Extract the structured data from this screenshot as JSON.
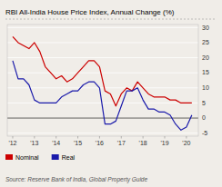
{
  "chart_data": {
    "type": "line",
    "title": "RBI All-India House Price Index, Annual Change (%)",
    "annotations": [
      "Source: Reserve Bank of India, Global Property Guide"
    ],
    "x": [
      2012.0,
      2012.25,
      2012.5,
      2012.75,
      2013.0,
      2013.25,
      2013.5,
      2013.75,
      2014.0,
      2014.25,
      2014.5,
      2014.75,
      2015.0,
      2015.25,
      2015.5,
      2015.75,
      2016.0,
      2016.25,
      2016.5,
      2016.75,
      2017.0,
      2017.25,
      2017.5,
      2017.75,
      2018.0,
      2018.25,
      2018.5,
      2018.75,
      2019.0,
      2019.25,
      2019.5,
      2019.75,
      2020.0,
      2020.25
    ],
    "series": [
      {
        "name": "Nominal",
        "color": "#cc0000",
        "values": [
          27,
          25,
          24,
          23,
          25,
          22,
          17,
          15,
          13,
          14,
          12,
          13,
          15,
          17,
          19,
          19,
          17,
          9,
          8,
          4,
          8,
          10,
          9,
          12,
          10,
          8,
          7,
          7,
          7,
          6,
          6,
          5,
          5,
          5
        ]
      },
      {
        "name": "Real",
        "color": "#1a1aaa",
        "values": [
          19,
          13,
          13,
          11,
          6,
          5,
          5,
          5,
          5,
          7,
          8,
          9,
          9,
          11,
          12,
          12,
          10,
          -2,
          -2,
          -1,
          4,
          9,
          9,
          10,
          6,
          3,
          3,
          2,
          2,
          1,
          -2,
          -4,
          -3,
          1
        ]
      }
    ],
    "xlim": [
      2011.75,
      2020.55
    ],
    "xticks": [
      {
        "value": 2012,
        "label": "'12"
      },
      {
        "value": 2013,
        "label": "'13"
      },
      {
        "value": 2014,
        "label": "'14"
      },
      {
        "value": 2015,
        "label": "'15"
      },
      {
        "value": 2016,
        "label": "'16"
      },
      {
        "value": 2017,
        "label": "'17"
      },
      {
        "value": 2018,
        "label": "'18"
      },
      {
        "value": 2019,
        "label": "'19"
      },
      {
        "value": 2020,
        "label": "'20"
      }
    ],
    "ylim": [
      -6,
      31
    ],
    "yticks": [
      -5,
      0,
      5,
      10,
      15,
      20,
      25,
      30
    ],
    "grid": true,
    "legend": "bottom"
  }
}
